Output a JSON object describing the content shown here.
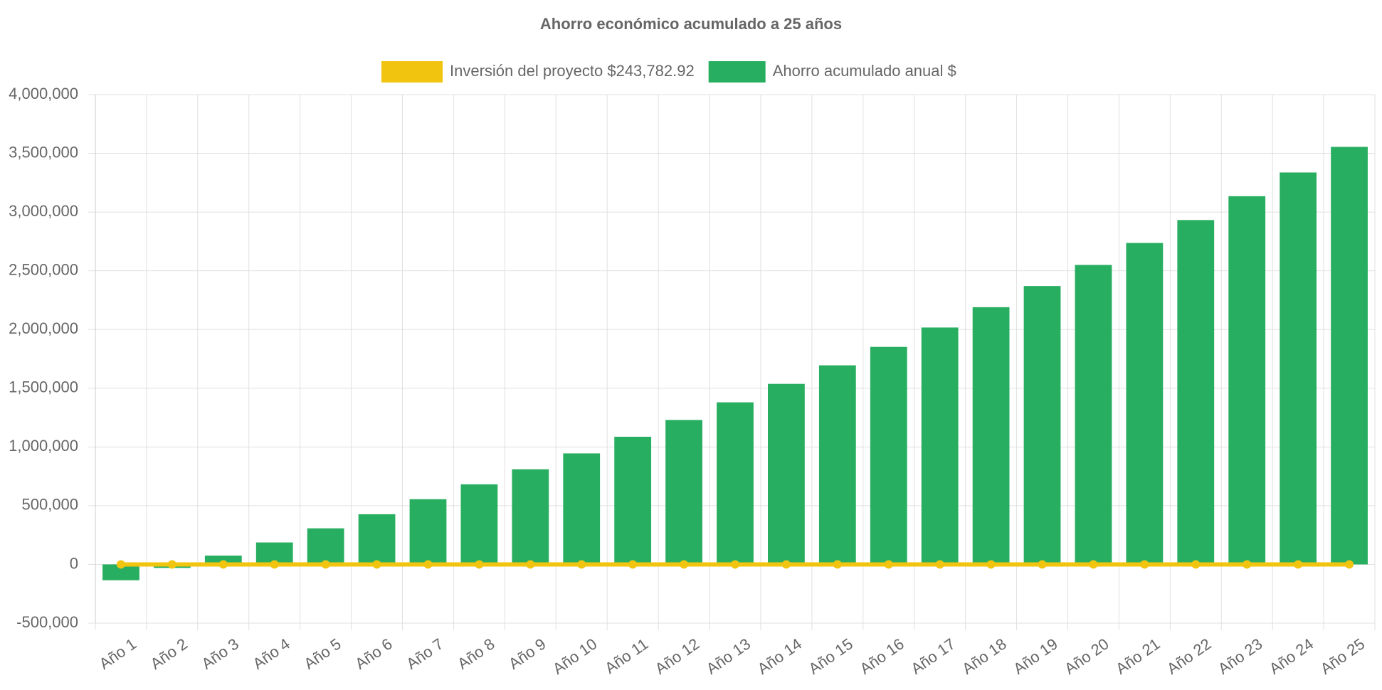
{
  "chart_data": {
    "type": "bar",
    "title": "Ahorro económico acumulado a 25 años",
    "categories": [
      "Año 1",
      "Año 2",
      "Año 3",
      "Año 4",
      "Año 5",
      "Año 6",
      "Año 7",
      "Año 8",
      "Año 9",
      "Año 10",
      "Año 11",
      "Año 12",
      "Año 13",
      "Año 14",
      "Año 15",
      "Año 16",
      "Año 17",
      "Año 18",
      "Año 19",
      "Año 20",
      "Año 21",
      "Año 22",
      "Año 23",
      "Año 24",
      "Año 25"
    ],
    "series": [
      {
        "name": "Inversión del proyecto $243,782.92",
        "type": "line",
        "color": "#f1c40f",
        "values": [
          0,
          0,
          0,
          0,
          0,
          0,
          0,
          0,
          0,
          0,
          0,
          0,
          0,
          0,
          0,
          0,
          0,
          0,
          0,
          0,
          0,
          0,
          0,
          0,
          0
        ]
      },
      {
        "name": "Ahorro acumulado anual $",
        "type": "bar",
        "color": "#27ae60",
        "values": [
          -135000,
          -30000,
          75000,
          187000,
          307000,
          427000,
          555000,
          682000,
          810000,
          945000,
          1087000,
          1230000,
          1380000,
          1537000,
          1695000,
          1852000,
          2017000,
          2190000,
          2370000,
          2550000,
          2737000,
          2932000,
          3135000,
          3337000,
          3555000
        ]
      }
    ],
    "ylim": [
      -500000,
      4000000
    ],
    "yticks": [
      {
        "value": -500000,
        "label": "-500,000"
      },
      0,
      {
        "value": 500000,
        "label": "500,000"
      },
      {
        "value": 1000000,
        "label": "1,000,000"
      },
      {
        "value": 1500000,
        "label": "1,500,000"
      },
      {
        "value": 2000000,
        "label": "2,000,000"
      },
      {
        "value": 2500000,
        "label": "2,500,000"
      },
      {
        "value": 3000000,
        "label": "3,000,000"
      },
      {
        "value": 3500000,
        "label": "3,500,000"
      },
      {
        "value": 4000000,
        "label": "4,000,000"
      }
    ],
    "grid": true,
    "legend": "top"
  }
}
